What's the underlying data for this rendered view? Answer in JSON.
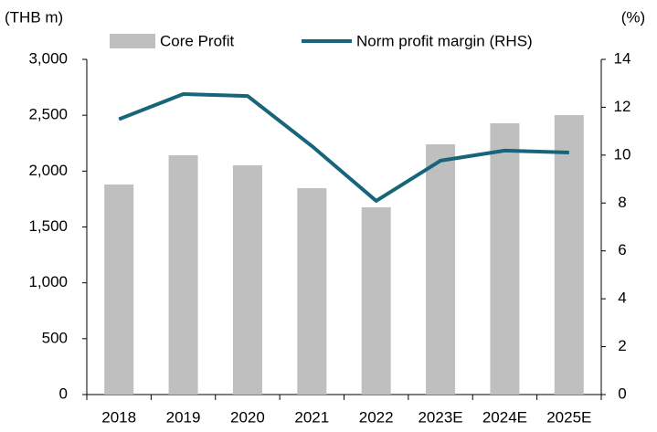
{
  "chart_data": {
    "type": "bar",
    "ylabel": "(THB m)",
    "y2label": "(%)",
    "categories": [
      "2018",
      "2019",
      "2020",
      "2021",
      "2022",
      "2023E",
      "2024E",
      "2025E"
    ],
    "series": [
      {
        "name": "Core Profit",
        "type": "bar",
        "color": "#bfbfbf",
        "values": [
          1880,
          2142,
          2052,
          1847,
          1676,
          2240,
          2428,
          2501
        ]
      },
      {
        "name": "Norm profit margin (RHS)",
        "type": "line",
        "axis": "y2",
        "color": "#17657a",
        "values": [
          11.5,
          12.55,
          12.47,
          10.38,
          8.09,
          9.77,
          10.19,
          10.11
        ]
      }
    ],
    "ylim": [
      0,
      3000
    ],
    "yticks": [
      0,
      500,
      {
        "value": 1000,
        "label": "1,000"
      },
      {
        "value": 1500,
        "label": "1,500"
      },
      {
        "value": 2000,
        "label": "2,000"
      },
      {
        "value": 2500,
        "label": "2,500"
      },
      {
        "value": 3000,
        "label": "3,000"
      }
    ],
    "y2lim": [
      0,
      14
    ],
    "y2ticks": [
      0,
      2,
      4,
      6,
      8,
      10,
      12,
      14
    ],
    "grid": false
  }
}
